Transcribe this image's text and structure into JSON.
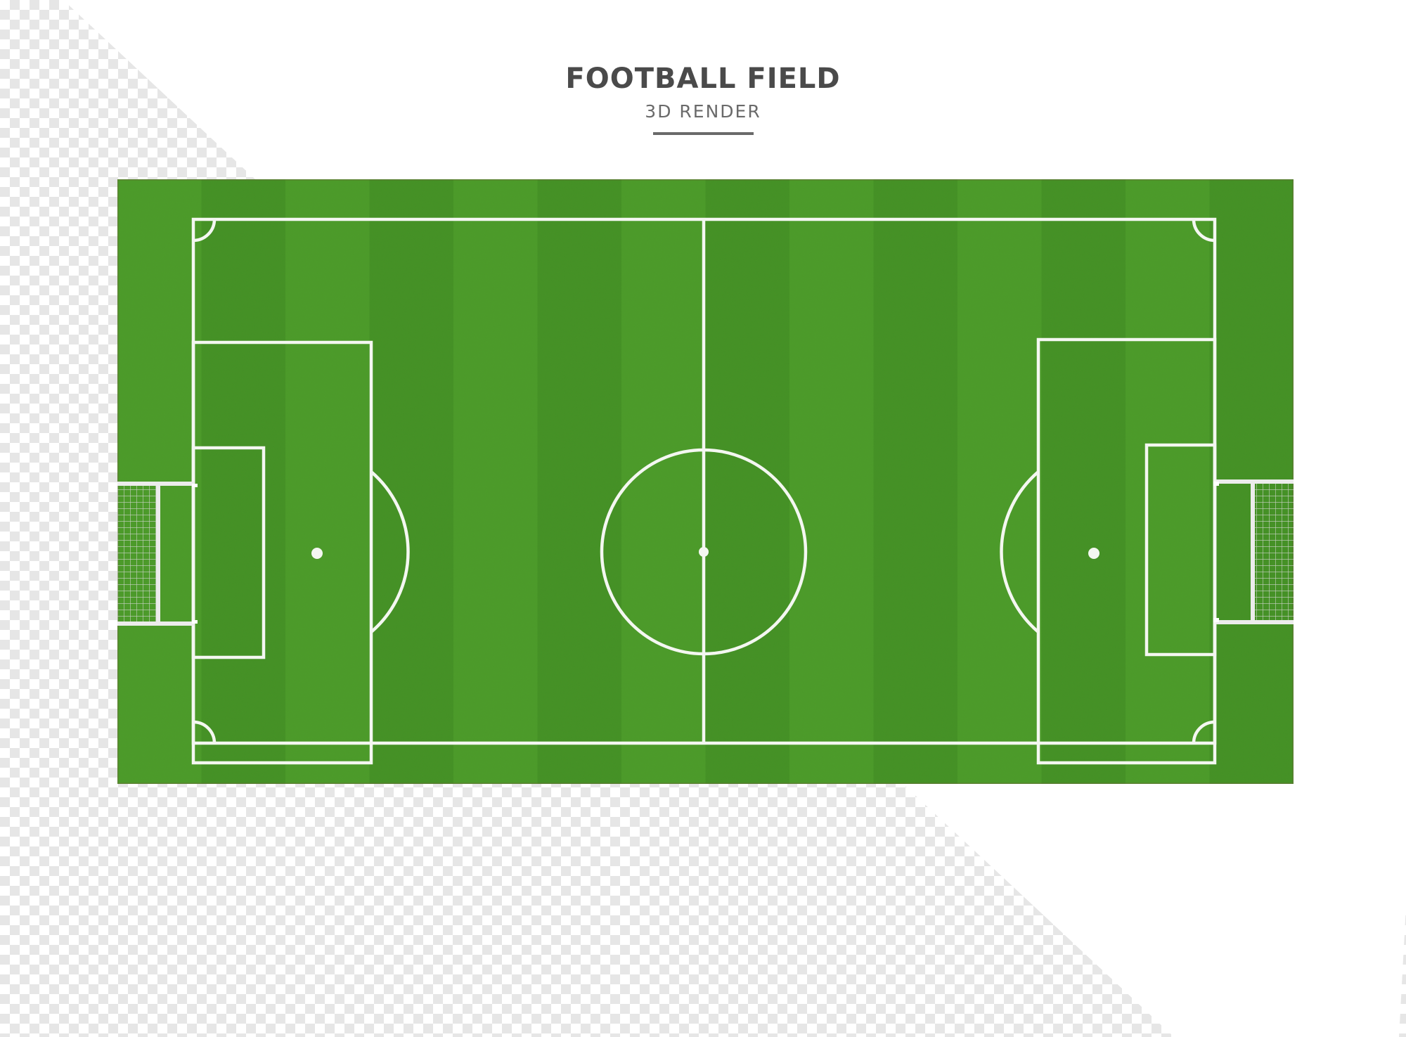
{
  "header": {
    "title": "FOOTBALL FIELD",
    "subtitle": "3D RENDER"
  },
  "pitch": {
    "grass_light": "#4fa02b",
    "grass_dark": "#3f8b22",
    "line_color": "#f4f7f1",
    "stripe_count": 14
  },
  "background": {
    "checker_color": "#e6e6e6",
    "band_color": "#ffffff"
  }
}
